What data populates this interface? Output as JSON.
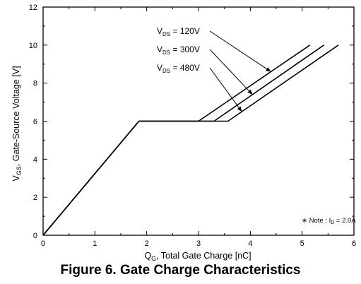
{
  "figure_caption": "Figure 6. Gate Charge Characteristics",
  "note": {
    "prefix": "∗ Note : I",
    "subscript": "D",
    "suffix": " = 2.0A"
  },
  "chart_data": {
    "type": "line",
    "title": "",
    "xlabel": {
      "prefix": "Q",
      "subscript": "G",
      "text": ", Total Gate Charge [nC]"
    },
    "ylabel": {
      "prefix": "V",
      "subscript": "GS",
      "text": ", Gate-Source Voltage [V]"
    },
    "xlim": [
      0,
      6
    ],
    "ylim": [
      0,
      12
    ],
    "xticks": [
      "0",
      "1",
      "2",
      "3",
      "4",
      "5",
      "6"
    ],
    "yticks": [
      "0",
      "2",
      "4",
      "6",
      "8",
      "10",
      "12"
    ],
    "grid": false,
    "series": [
      {
        "name": "V_DS = 120V",
        "label_prefix": "V",
        "label_sub": "DS",
        "label_suffix": " = 120V",
        "x": [
          0,
          1.85,
          3.0,
          5.15
        ],
        "y": [
          0,
          6,
          6,
          10
        ]
      },
      {
        "name": "V_DS = 300V",
        "label_prefix": "V",
        "label_sub": "DS",
        "label_suffix": " = 300V",
        "x": [
          0,
          1.85,
          3.3,
          5.42
        ],
        "y": [
          0,
          6,
          6,
          10
        ]
      },
      {
        "name": "V_DS = 480V",
        "label_prefix": "V",
        "label_sub": "DS",
        "label_suffix": " = 480V",
        "x": [
          0,
          1.85,
          3.57,
          5.7
        ],
        "y": [
          0,
          6,
          6,
          10
        ]
      }
    ],
    "legend_pointer_y": [
      8.6,
      7.4,
      6.5
    ]
  }
}
